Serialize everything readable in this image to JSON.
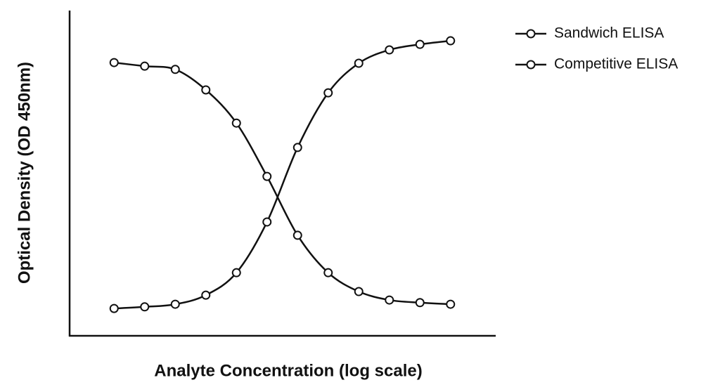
{
  "chart_data": {
    "type": "line",
    "xlabel": "Analyte Concentration (log scale)",
    "ylabel": "Optical Density (OD 450nm)",
    "x": [
      1,
      2,
      3,
      4,
      5,
      6,
      7,
      8,
      9,
      10,
      11,
      12
    ],
    "xlim": [
      -0.5,
      13.5
    ],
    "ylim": [
      0,
      1
    ],
    "series": [
      {
        "name": "Sandwich ELISA",
        "color": "#111111",
        "values": [
          0.084,
          0.089,
          0.097,
          0.125,
          0.194,
          0.35,
          0.579,
          0.747,
          0.838,
          0.879,
          0.896,
          0.907
        ]
      },
      {
        "name": "Competitive ELISA",
        "color": "#111111",
        "values": [
          0.84,
          0.829,
          0.819,
          0.756,
          0.654,
          0.49,
          0.309,
          0.194,
          0.136,
          0.11,
          0.102,
          0.097
        ]
      }
    ],
    "legend": "upper right"
  }
}
